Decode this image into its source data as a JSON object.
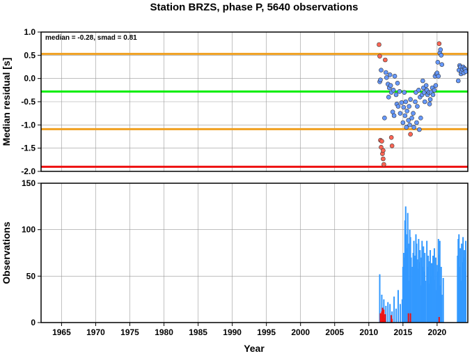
{
  "chart_data": [
    {
      "type": "scatter",
      "title": "Station BRZS, phase P, 5640 observations",
      "annotation": "median = -0.28, smad = 0.81",
      "ylabel": "Median residual [s]",
      "xlim": [
        1962,
        2024.5
      ],
      "ylim": [
        -2.0,
        1.0
      ],
      "yticks": [
        "1.0",
        "0.5",
        "0.0",
        "-0.5",
        "-1.0",
        "-1.5",
        "-2.0"
      ],
      "grid": true,
      "reference_lines": [
        {
          "name": "median",
          "y": -0.28,
          "color": "#00ee00"
        },
        {
          "name": "upper",
          "y": 0.53,
          "color": "#f0a020"
        },
        {
          "name": "lower",
          "y": -1.09,
          "color": "#f0a020"
        },
        {
          "name": "limit",
          "y": -1.9,
          "color": "#ee1111"
        }
      ],
      "series": [
        {
          "color": "#6699ff",
          "points": [
            [
              2011.6,
              -0.07
            ],
            [
              2011.7,
              -0.03
            ],
            [
              2011.8,
              0.18
            ],
            [
              2012.3,
              -0.85
            ],
            [
              2012.5,
              0.13
            ],
            [
              2012.6,
              0.02
            ],
            [
              2012.8,
              -0.12
            ],
            [
              2012.9,
              -0.4
            ],
            [
              2013.0,
              -0.2
            ],
            [
              2013.1,
              0.08
            ],
            [
              2013.2,
              -0.15
            ],
            [
              2013.3,
              -0.3
            ],
            [
              2013.5,
              -0.72
            ],
            [
              2013.6,
              -0.25
            ],
            [
              2013.7,
              -0.8
            ],
            [
              2013.8,
              0.05
            ],
            [
              2014.0,
              -0.35
            ],
            [
              2014.1,
              -0.55
            ],
            [
              2014.2,
              -0.1
            ],
            [
              2014.3,
              -0.6
            ],
            [
              2014.5,
              -0.28
            ],
            [
              2014.6,
              -0.75
            ],
            [
              2014.8,
              -0.52
            ],
            [
              2015.0,
              -0.95
            ],
            [
              2015.1,
              -0.62
            ],
            [
              2015.2,
              -0.3
            ],
            [
              2015.3,
              -0.8
            ],
            [
              2015.4,
              -0.5
            ],
            [
              2015.5,
              -1.05
            ],
            [
              2015.6,
              -0.7
            ],
            [
              2015.8,
              -0.9
            ],
            [
              2015.9,
              -0.6
            ],
            [
              2016.0,
              -1.0
            ],
            [
              2016.1,
              -0.45
            ],
            [
              2016.3,
              -0.85
            ],
            [
              2016.5,
              -0.75
            ],
            [
              2016.6,
              -1.05
            ],
            [
              2016.8,
              -0.5
            ],
            [
              2016.9,
              -0.3
            ],
            [
              2017.0,
              -0.95
            ],
            [
              2017.1,
              -0.6
            ],
            [
              2017.3,
              -0.25
            ],
            [
              2017.4,
              -1.1
            ],
            [
              2017.5,
              -0.4
            ],
            [
              2017.6,
              -0.85
            ],
            [
              2017.8,
              -0.35
            ],
            [
              2017.9,
              -0.05
            ],
            [
              2018.0,
              -0.2
            ],
            [
              2018.1,
              -0.3
            ],
            [
              2018.2,
              -0.5
            ],
            [
              2018.4,
              -0.15
            ],
            [
              2018.5,
              -0.25
            ],
            [
              2018.6,
              -0.35
            ],
            [
              2018.8,
              -0.3
            ],
            [
              2018.9,
              -0.55
            ],
            [
              2019.0,
              -0.45
            ],
            [
              2019.1,
              -0.3
            ],
            [
              2019.3,
              -0.2
            ],
            [
              2019.4,
              -0.35
            ],
            [
              2019.6,
              -0.25
            ],
            [
              2019.7,
              0.05
            ],
            [
              2019.8,
              -0.15
            ],
            [
              2019.9,
              0.1
            ],
            [
              2020.0,
              0.12
            ],
            [
              2020.1,
              0.35
            ],
            [
              2020.2,
              0.05
            ],
            [
              2020.4,
              0.55
            ],
            [
              2020.5,
              0.62
            ],
            [
              2020.6,
              0.5
            ],
            [
              2020.7,
              0.3
            ],
            [
              2023.1,
              -0.05
            ],
            [
              2023.2,
              0.18
            ],
            [
              2023.3,
              0.28
            ],
            [
              2023.4,
              0.25
            ],
            [
              2023.5,
              0.1
            ],
            [
              2023.6,
              0.15
            ],
            [
              2023.7,
              0.2
            ],
            [
              2023.8,
              0.25
            ],
            [
              2023.9,
              0.12
            ],
            [
              2024.0,
              0.22
            ],
            [
              2024.1,
              0.2
            ],
            [
              2024.2,
              0.15
            ]
          ]
        },
        {
          "color": "#ff6655",
          "points": [
            [
              2011.5,
              0.73
            ],
            [
              2011.6,
              0.48
            ],
            [
              2011.7,
              -1.33
            ],
            [
              2011.8,
              -1.48
            ],
            [
              2011.9,
              -1.35
            ],
            [
              2012.0,
              -1.62
            ],
            [
              2012.1,
              -1.55
            ],
            [
              2012.1,
              -1.73
            ],
            [
              2012.2,
              -1.85
            ],
            [
              2012.4,
              0.4
            ],
            [
              2013.3,
              -1.27
            ],
            [
              2013.4,
              -1.45
            ],
            [
              2016.1,
              -1.2
            ],
            [
              2020.3,
              0.75
            ]
          ]
        }
      ]
    },
    {
      "type": "bar",
      "xlabel": "Year",
      "ylabel": "Observations",
      "xlim": [
        1962,
        2024.5
      ],
      "ylim": [
        0,
        150
      ],
      "xticks": [
        "1965",
        "1970",
        "1975",
        "1980",
        "1985",
        "1990",
        "1995",
        "2000",
        "2005",
        "2010",
        "2015",
        "2020"
      ],
      "yticks": [
        "150",
        "100",
        "50",
        "0"
      ],
      "grid": true,
      "series": [
        {
          "color": "#3399ff",
          "bars": [
            [
              2011.6,
              52
            ],
            [
              2011.9,
              30
            ],
            [
              2012.2,
              25
            ],
            [
              2012.5,
              18
            ],
            [
              2012.8,
              22
            ],
            [
              2013.1,
              20
            ],
            [
              2013.4,
              12
            ],
            [
              2013.7,
              28
            ],
            [
              2014.0,
              15
            ],
            [
              2014.3,
              35
            ],
            [
              2014.6,
              20
            ],
            [
              2014.9,
              25
            ],
            [
              2015.0,
              60
            ],
            [
              2015.1,
              75
            ],
            [
              2015.2,
              70
            ],
            [
              2015.3,
              110
            ],
            [
              2015.4,
              125
            ],
            [
              2015.5,
              95
            ],
            [
              2015.6,
              80
            ],
            [
              2015.7,
              118
            ],
            [
              2015.8,
              85
            ],
            [
              2015.9,
              45
            ],
            [
              2016.0,
              100
            ],
            [
              2016.1,
              92
            ],
            [
              2016.2,
              70
            ],
            [
              2016.4,
              60
            ],
            [
              2016.5,
              75
            ],
            [
              2016.6,
              88
            ],
            [
              2016.7,
              55
            ],
            [
              2016.8,
              72
            ],
            [
              2016.9,
              95
            ],
            [
              2017.0,
              85
            ],
            [
              2017.1,
              68
            ],
            [
              2017.2,
              58
            ],
            [
              2017.3,
              90
            ],
            [
              2017.4,
              65
            ],
            [
              2017.5,
              78
            ],
            [
              2017.6,
              40
            ],
            [
              2017.7,
              70
            ],
            [
              2017.8,
              88
            ],
            [
              2017.9,
              60
            ],
            [
              2018.0,
              82
            ],
            [
              2018.1,
              55
            ],
            [
              2018.2,
              75
            ],
            [
              2018.3,
              45
            ],
            [
              2018.5,
              88
            ],
            [
              2018.6,
              60
            ],
            [
              2018.7,
              72
            ],
            [
              2018.8,
              42
            ],
            [
              2018.9,
              66
            ],
            [
              2019.0,
              78
            ],
            [
              2019.1,
              50
            ],
            [
              2019.2,
              64
            ],
            [
              2019.3,
              38
            ],
            [
              2019.4,
              72
            ],
            [
              2019.5,
              58
            ],
            [
              2019.6,
              80
            ],
            [
              2019.7,
              46
            ],
            [
              2019.8,
              70
            ],
            [
              2019.9,
              35
            ],
            [
              2020.0,
              62
            ],
            [
              2020.1,
              55
            ],
            [
              2020.2,
              90
            ],
            [
              2020.3,
              73
            ],
            [
              2020.4,
              88
            ],
            [
              2020.5,
              40
            ],
            [
              2020.6,
              60
            ],
            [
              2020.7,
              30
            ],
            [
              2020.9,
              48
            ],
            [
              2023.0,
              72
            ],
            [
              2023.1,
              90
            ],
            [
              2023.2,
              95
            ],
            [
              2023.3,
              60
            ],
            [
              2023.4,
              80
            ],
            [
              2023.5,
              45
            ],
            [
              2023.6,
              85
            ],
            [
              2023.7,
              65
            ],
            [
              2023.8,
              92
            ],
            [
              2023.9,
              70
            ],
            [
              2024.0,
              78
            ],
            [
              2024.1,
              55
            ],
            [
              2024.2,
              88
            ]
          ]
        },
        {
          "color": "#ee1111",
          "bars": [
            [
              2011.7,
              10
            ],
            [
              2011.9,
              12
            ],
            [
              2012.0,
              16
            ],
            [
              2012.1,
              8
            ],
            [
              2012.2,
              14
            ],
            [
              2012.3,
              5
            ],
            [
              2012.4,
              9
            ],
            [
              2013.3,
              8
            ],
            [
              2013.4,
              4
            ],
            [
              2015.8,
              10
            ],
            [
              2016.1,
              10
            ],
            [
              2020.3,
              6
            ]
          ]
        }
      ]
    }
  ]
}
